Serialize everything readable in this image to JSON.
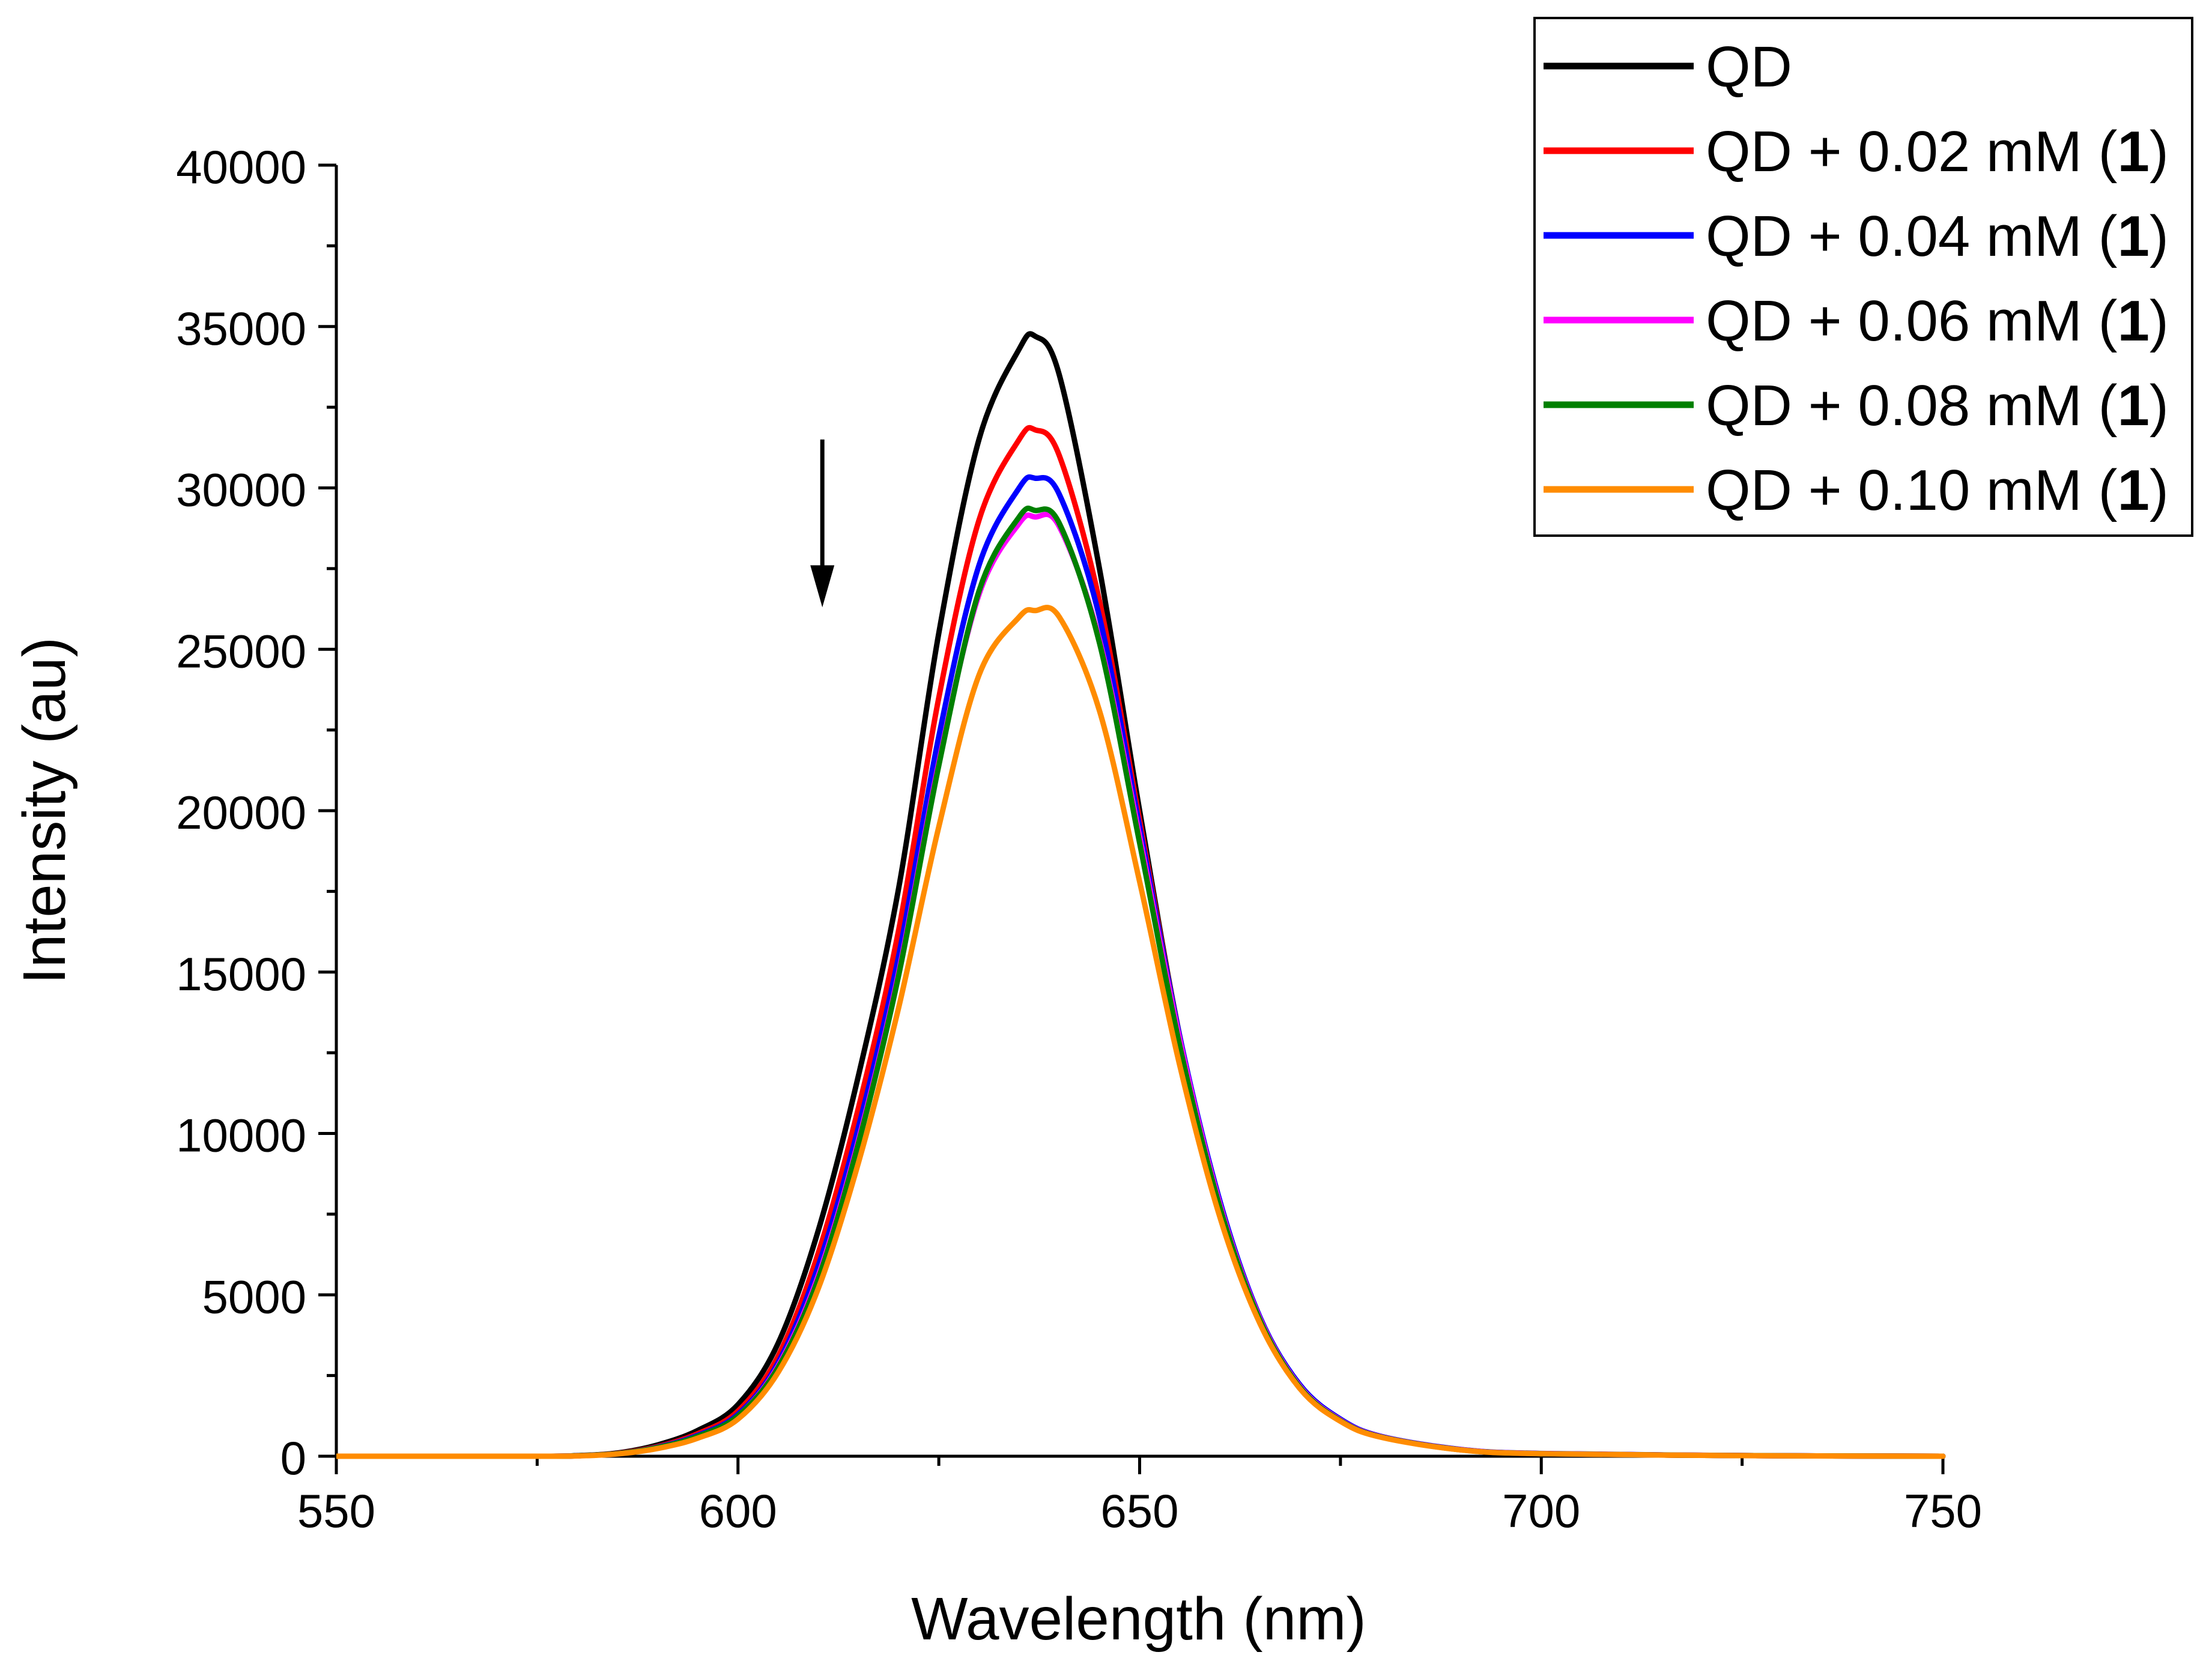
{
  "chart_data": {
    "type": "line",
    "title": "",
    "xlabel": "Wavelength (nm)",
    "ylabel": "Intensity (au)",
    "xlim": [
      550,
      750
    ],
    "ylim": [
      0,
      40000
    ],
    "x_ticks": [
      550,
      600,
      650,
      700,
      750
    ],
    "y_ticks": [
      0,
      5000,
      10000,
      15000,
      20000,
      25000,
      30000,
      35000,
      40000
    ],
    "x_tick_labels": [
      "550",
      "600",
      "650",
      "700",
      "750"
    ],
    "y_tick_labels": [
      "0",
      "5000",
      "10000",
      "15000",
      "20000",
      "25000",
      "30000",
      "35000",
      "40000"
    ],
    "grid": false,
    "legend_position": "top-right",
    "annotation": {
      "type": "arrow",
      "direction": "down",
      "x": 610.5,
      "y_start": 31500,
      "y_end": 26300
    },
    "x": [
      550,
      575,
      580,
      585,
      590,
      595,
      600,
      605,
      610,
      615,
      620,
      625,
      630,
      635,
      637,
      640,
      645,
      650,
      655,
      660,
      665,
      670,
      675,
      680,
      690,
      700,
      725,
      750
    ],
    "series": [
      {
        "name": "QD",
        "label_main": "QD",
        "label_bold": "",
        "label_end": "",
        "color": "#000000",
        "peak_wavelength": 636.5,
        "peak_intensity": 34700,
        "values": [
          0,
          0,
          20,
          100,
          350,
          800,
          1600,
          3500,
          7000,
          11800,
          17600,
          25500,
          31500,
          34300,
          34700,
          33500,
          27500,
          20000,
          13000,
          7800,
          4200,
          2100,
          1100,
          600,
          200,
          80,
          20,
          0
        ]
      },
      {
        "name": "QD + 0.02 mM (1)",
        "label_main": "QD + 0.02 mM (",
        "label_bold": "1",
        "label_end": ")",
        "color": "#ff0000",
        "peak_wavelength": 637.5,
        "peak_intensity": 31800,
        "values": [
          0,
          0,
          15,
          90,
          300,
          700,
          1400,
          3100,
          6300,
          10800,
          16300,
          23500,
          29000,
          31500,
          31800,
          31000,
          26500,
          19700,
          13000,
          7800,
          4200,
          2100,
          1100,
          600,
          200,
          80,
          20,
          0
        ]
      },
      {
        "name": "QD + 0.04 mM (1)",
        "label_main": "QD + 0.04 mM (",
        "label_bold": "1",
        "label_end": ")",
        "color": "#0000ff",
        "peak_wavelength": 638.0,
        "peak_intensity": 30300,
        "values": [
          0,
          0,
          15,
          80,
          280,
          650,
          1300,
          2900,
          5900,
          10200,
          15500,
          22300,
          27600,
          30000,
          30300,
          29800,
          26000,
          19500,
          13000,
          7900,
          4300,
          2200,
          1150,
          620,
          210,
          85,
          20,
          0
        ]
      },
      {
        "name": "QD + 0.06 mM (1)",
        "label_main": "QD + 0.06 mM (",
        "label_bold": "1",
        "label_end": ")",
        "color": "#ff00ff",
        "peak_wavelength": 638.0,
        "peak_intensity": 29100,
        "values": [
          0,
          0,
          15,
          80,
          270,
          620,
          1250,
          2800,
          5600,
          9800,
          15000,
          21500,
          26700,
          28900,
          29100,
          28800,
          25300,
          19200,
          12900,
          7800,
          4250,
          2150,
          1120,
          610,
          205,
          82,
          20,
          0
        ]
      },
      {
        "name": "QD + 0.08 mM (1)",
        "label_main": "QD + 0.08 mM (",
        "label_bold": "1",
        "label_end": ")",
        "color": "#008000",
        "peak_wavelength": 638.0,
        "peak_intensity": 29300,
        "values": [
          0,
          0,
          15,
          80,
          270,
          620,
          1250,
          2750,
          5500,
          9700,
          14900,
          21400,
          26800,
          29100,
          29300,
          28900,
          25200,
          19000,
          12700,
          7700,
          4200,
          2120,
          1100,
          600,
          200,
          80,
          20,
          0
        ]
      },
      {
        "name": "QD + 0.10 mM (1)",
        "label_main": "QD + 0.10 mM (",
        "label_bold": "1",
        "label_end": ")",
        "color": "#ff8c00",
        "peak_wavelength": 638.5,
        "peak_intensity": 26200,
        "values": [
          0,
          0,
          10,
          70,
          240,
          560,
          1150,
          2600,
          5200,
          9100,
          13900,
          19500,
          24200,
          26000,
          26200,
          26000,
          23100,
          17800,
          12100,
          7400,
          4100,
          2080,
          1080,
          590,
          195,
          78,
          18,
          0
        ]
      }
    ]
  }
}
